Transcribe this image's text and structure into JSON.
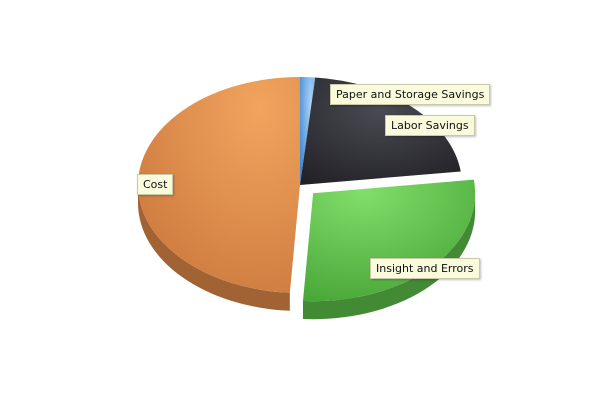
{
  "chart_data": {
    "type": "pie",
    "style": "3d-exploded",
    "categories": [
      "Paper and Storage Savings",
      "Labor Savings",
      "Insight and Errors",
      "Cost"
    ],
    "values": [
      1.5,
      21.5,
      28,
      49
    ],
    "colors": [
      "#5aa0e0",
      "#2a2a30",
      "#5cc048",
      "#e08a48"
    ],
    "legend": "none"
  }
}
